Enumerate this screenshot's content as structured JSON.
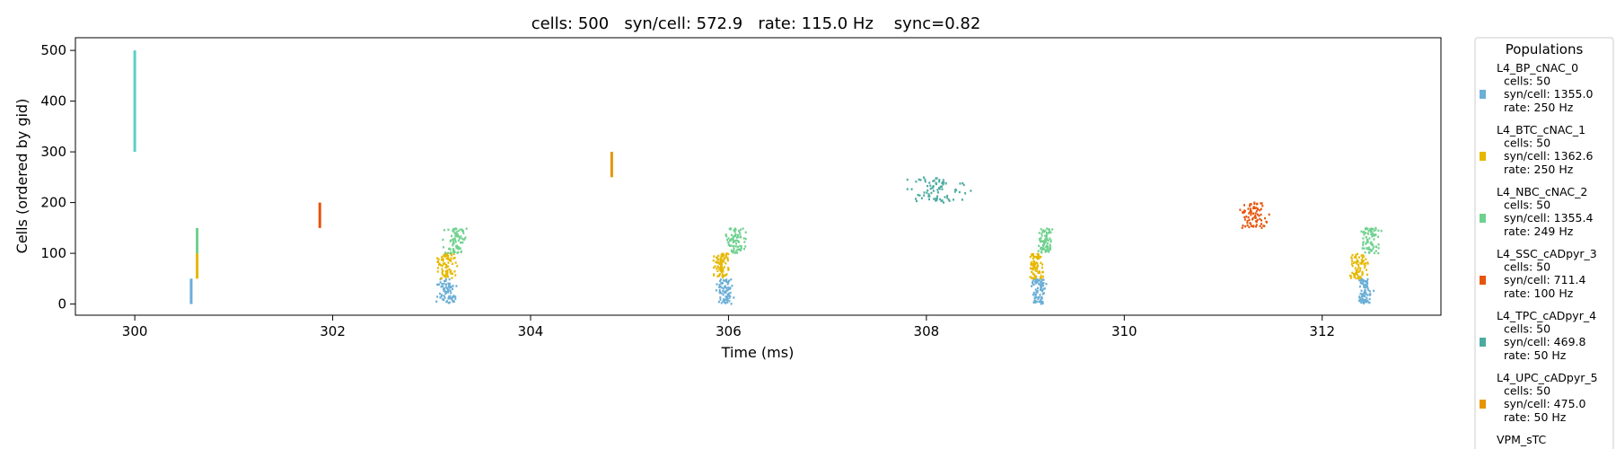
{
  "chart_data": {
    "type": "scatter",
    "title": "cells: 500   syn/cell: 572.9   rate: 115.0 Hz    sync=0.82",
    "xlabel": "Time (ms)",
    "ylabel": "Cells (ordered by gid)",
    "xlim": [
      299.4,
      313.2
    ],
    "ylim": [
      -22,
      525
    ],
    "xticks": [
      300,
      302,
      304,
      306,
      308,
      310,
      312
    ],
    "yticks": [
      0,
      100,
      200,
      300,
      400,
      500
    ],
    "grid": false,
    "legend": {
      "title": "Populations",
      "placement": "right-outside",
      "entries": [
        {
          "lines": [
            "L4_BP_cNAC_0",
            "  cells: 50",
            "  syn/cell: 1355.0",
            "  rate: 250 Hz"
          ],
          "color": "#6baed6"
        },
        {
          "lines": [
            "L4_BTC_cNAC_1",
            "  cells: 50",
            "  syn/cell: 1362.6",
            "  rate: 250 Hz"
          ],
          "color": "#e6b800"
        },
        {
          "lines": [
            "L4_NBC_cNAC_2",
            "  cells: 50",
            "  syn/cell: 1355.4",
            "  rate: 249 Hz"
          ],
          "color": "#6fd18f"
        },
        {
          "lines": [
            "L4_SSC_cADpyr_3",
            "  cells: 50",
            "  syn/cell: 711.4",
            "  rate: 100 Hz"
          ],
          "color": "#e6550d"
        },
        {
          "lines": [
            "L4_TPC_cADpyr_4",
            "  cells: 50",
            "  syn/cell: 469.8",
            "  rate: 50 Hz"
          ],
          "color": "#4daaa0"
        },
        {
          "lines": [
            "L4_UPC_cADpyr_5",
            "  cells: 50",
            "  syn/cell: 475.0",
            "  rate: 50 Hz"
          ],
          "color": "#e69500"
        },
        {
          "lines": [
            "VPM_sTC"
          ],
          "color": "#5ad0c8"
        }
      ]
    },
    "events": [
      {
        "population": "VPM_sTC",
        "color": "#5ad0c8",
        "time": 300.0,
        "gid_range": [
          300,
          500
        ],
        "kind": "sync"
      },
      {
        "population": "L4_BP_cNAC_0",
        "color": "#6baed6",
        "time": 300.57,
        "gid_range": [
          0,
          50
        ],
        "kind": "sync"
      },
      {
        "population": "L4_BTC_cNAC_1",
        "color": "#e6b800",
        "time": 300.63,
        "gid_range": [
          50,
          100
        ],
        "kind": "sync"
      },
      {
        "population": "L4_NBC_cNAC_2",
        "color": "#6fd18f",
        "time": 300.63,
        "gid_range": [
          100,
          150
        ],
        "kind": "sync"
      },
      {
        "population": "L4_SSC_cADpyr_3",
        "color": "#e6550d",
        "time": 301.87,
        "gid_range": [
          150,
          200
        ],
        "kind": "sync"
      },
      {
        "population": "L4_UPC_cADpyr_5",
        "color": "#e69500",
        "time": 304.82,
        "gid_range": [
          250,
          300
        ],
        "kind": "sync"
      },
      {
        "population": "L4_BP_cNAC_0",
        "color": "#6baed6",
        "time": 303.15,
        "gid_range": [
          0,
          50
        ],
        "kind": "burst",
        "spread": 0.1
      },
      {
        "population": "L4_BTC_cNAC_1",
        "color": "#e6b800",
        "time": 303.15,
        "gid_range": [
          50,
          100
        ],
        "kind": "burst",
        "spread": 0.1
      },
      {
        "population": "L4_NBC_cNAC_2",
        "color": "#6fd18f",
        "time": 303.25,
        "gid_range": [
          100,
          150
        ],
        "kind": "burst",
        "spread": 0.12
      },
      {
        "population": "L4_BP_cNAC_0",
        "color": "#6baed6",
        "time": 305.97,
        "gid_range": [
          0,
          50
        ],
        "kind": "burst",
        "spread": 0.08
      },
      {
        "population": "L4_BTC_cNAC_1",
        "color": "#e6b800",
        "time": 305.93,
        "gid_range": [
          50,
          100
        ],
        "kind": "burst",
        "spread": 0.08
      },
      {
        "population": "L4_NBC_cNAC_2",
        "color": "#6fd18f",
        "time": 306.07,
        "gid_range": [
          100,
          150
        ],
        "kind": "burst",
        "spread": 0.1
      },
      {
        "population": "L4_TPC_cADpyr_4",
        "color": "#4daaa0",
        "time": 308.1,
        "gid_range": [
          200,
          250
        ],
        "kind": "burst",
        "spread": 0.3
      },
      {
        "population": "L4_BP_cNAC_0",
        "color": "#6baed6",
        "time": 309.13,
        "gid_range": [
          0,
          50
        ],
        "kind": "burst",
        "spread": 0.08
      },
      {
        "population": "L4_BTC_cNAC_1",
        "color": "#e6b800",
        "time": 309.1,
        "gid_range": [
          50,
          100
        ],
        "kind": "burst",
        "spread": 0.08
      },
      {
        "population": "L4_NBC_cNAC_2",
        "color": "#6fd18f",
        "time": 309.2,
        "gid_range": [
          100,
          150
        ],
        "kind": "burst",
        "spread": 0.08
      },
      {
        "population": "L4_SSC_cADpyr_3",
        "color": "#e6550d",
        "time": 311.3,
        "gid_range": [
          150,
          200
        ],
        "kind": "burst",
        "spread": 0.14
      },
      {
        "population": "L4_BP_cNAC_0",
        "color": "#6baed6",
        "time": 312.43,
        "gid_range": [
          0,
          50
        ],
        "kind": "burst",
        "spread": 0.08
      },
      {
        "population": "L4_BTC_cNAC_1",
        "color": "#e6b800",
        "time": 312.37,
        "gid_range": [
          50,
          100
        ],
        "kind": "burst",
        "spread": 0.09
      },
      {
        "population": "L4_NBC_cNAC_2",
        "color": "#6fd18f",
        "time": 312.5,
        "gid_range": [
          100,
          150
        ],
        "kind": "burst",
        "spread": 0.12
      }
    ]
  }
}
